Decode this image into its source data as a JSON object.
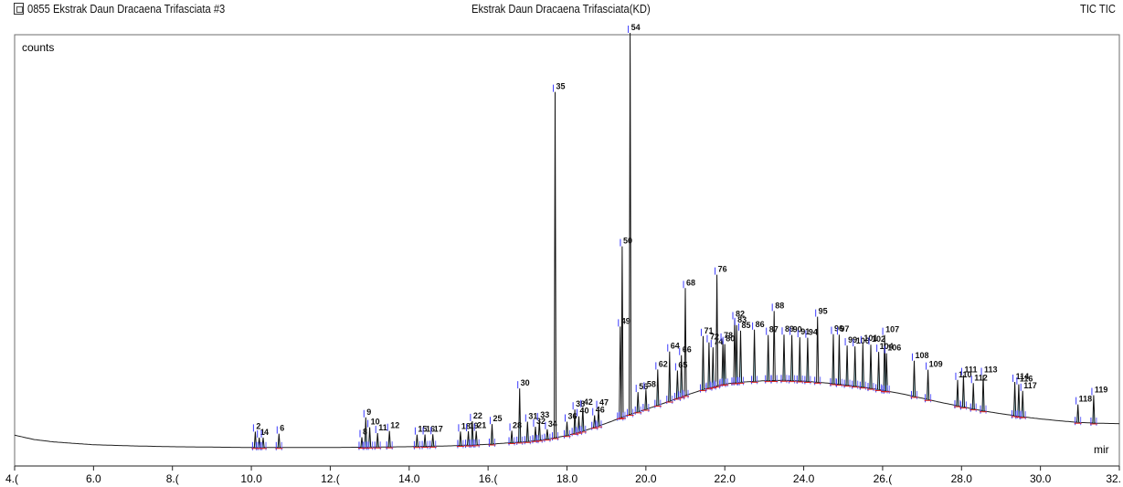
{
  "header": {
    "sample_name": "0855 Ekstrak Daun Dracaena Trifasciata #3",
    "sample_title": "Ekstrak Daun Dracaena Trifasciata(KD)",
    "trace_label": "TIC TIC",
    "file_icon": "file-icon"
  },
  "chart_data": {
    "type": "line",
    "title": "Ekstrak Daun Dracaena Trifasciata(KD)",
    "ylabel": "counts",
    "xlabel": "mir",
    "xlim": [
      4.0,
      32.0
    ],
    "ylim": [
      0,
      100
    ],
    "grid": false,
    "x_ticks": [
      4.0,
      6.0,
      8.0,
      10.0,
      12.0,
      14.0,
      16.0,
      18.0,
      20.0,
      22.0,
      24.0,
      26.0,
      28.0,
      30.0,
      32.0
    ],
    "x_tick_labels": [
      "4.(",
      "6.0",
      "8.(",
      "10.0",
      "12.(",
      "14.0",
      "16.(",
      "18.0",
      "20.0",
      "22.0",
      "24.0",
      "26.(",
      "28.0",
      "30.0",
      "32."
    ],
    "baseline": {
      "x": [
        4.0,
        4.5,
        5.0,
        6.0,
        7.0,
        8.0,
        9.0,
        10.0,
        11.0,
        12.0,
        13.0,
        14.0,
        15.0,
        16.0,
        17.0,
        17.5,
        18.0,
        18.5,
        19.0,
        19.5,
        20.0,
        20.5,
        21.0,
        21.5,
        22.0,
        22.5,
        23.0,
        23.5,
        24.0,
        24.5,
        25.0,
        25.5,
        26.0,
        26.5,
        27.0,
        27.5,
        28.0,
        28.5,
        29.0,
        29.5,
        30.0,
        30.5,
        31.0,
        31.5,
        32.0
      ],
      "y": [
        4.3,
        3.2,
        2.6,
        1.9,
        1.6,
        1.4,
        1.3,
        1.2,
        1.2,
        1.2,
        1.3,
        1.4,
        1.6,
        2.0,
        2.7,
        3.3,
        4.2,
        5.6,
        7.3,
        9.2,
        10.8,
        12.5,
        14.3,
        15.9,
        17.2,
        17.7,
        18.0,
        18.1,
        17.9,
        17.5,
        17.0,
        16.4,
        15.6,
        14.7,
        13.6,
        12.5,
        11.5,
        10.5,
        9.7,
        9.0,
        8.4,
        7.9,
        7.5,
        7.3,
        7.2
      ]
    },
    "peaks": [
      {
        "label": "2",
        "rt": 10.1,
        "h": 4.0
      },
      {
        "label": "1",
        "rt": 10.2,
        "h": 2.5
      },
      {
        "label": "4",
        "rt": 10.3,
        "h": 2.5
      },
      {
        "label": "6",
        "rt": 10.7,
        "h": 3.5
      },
      {
        "label": "9",
        "rt": 12.9,
        "h": 7.5
      },
      {
        "label": "8",
        "rt": 12.8,
        "h": 2.5
      },
      {
        "label": "10",
        "rt": 13.0,
        "h": 5.0
      },
      {
        "label": "11",
        "rt": 13.2,
        "h": 3.5
      },
      {
        "label": "12",
        "rt": 13.5,
        "h": 4.0
      },
      {
        "label": "15",
        "rt": 14.2,
        "h": 3.0
      },
      {
        "label": "16",
        "rt": 14.4,
        "h": 3.0
      },
      {
        "label": "17",
        "rt": 14.6,
        "h": 3.0
      },
      {
        "label": "18",
        "rt": 15.3,
        "h": 3.5
      },
      {
        "label": "19",
        "rt": 15.5,
        "h": 3.5
      },
      {
        "label": "22",
        "rt": 15.6,
        "h": 6.0
      },
      {
        "label": "21",
        "rt": 15.7,
        "h": 3.5
      },
      {
        "label": "25",
        "rt": 16.1,
        "h": 5.0
      },
      {
        "label": "28",
        "rt": 16.6,
        "h": 3.0
      },
      {
        "label": "30",
        "rt": 16.8,
        "h": 13.5
      },
      {
        "label": "31",
        "rt": 17.0,
        "h": 5.0
      },
      {
        "label": "32",
        "rt": 17.2,
        "h": 3.5
      },
      {
        "label": "33",
        "rt": 17.3,
        "h": 5.0
      },
      {
        "label": "34",
        "rt": 17.5,
        "h": 2.5
      },
      {
        "label": "35",
        "rt": 17.7,
        "h": 87.0
      },
      {
        "label": "36",
        "rt": 18.0,
        "h": 3.5
      },
      {
        "label": "38",
        "rt": 18.2,
        "h": 6.0
      },
      {
        "label": "42",
        "rt": 18.4,
        "h": 6.0
      },
      {
        "label": "40",
        "rt": 18.3,
        "h": 4.0
      },
      {
        "label": "47",
        "rt": 18.8,
        "h": 4.5
      },
      {
        "label": "46",
        "rt": 18.7,
        "h": 3.0
      },
      {
        "label": "49",
        "rt": 19.35,
        "h": 23.0
      },
      {
        "label": "50",
        "rt": 19.4,
        "h": 43.0
      },
      {
        "label": "54",
        "rt": 19.6,
        "h": 96.0
      },
      {
        "label": "56",
        "rt": 19.8,
        "h": 5.0
      },
      {
        "label": "58",
        "rt": 20.0,
        "h": 5.0
      },
      {
        "label": "62",
        "rt": 20.3,
        "h": 9.0
      },
      {
        "label": "64",
        "rt": 20.6,
        "h": 12.5
      },
      {
        "label": "65",
        "rt": 20.8,
        "h": 7.0
      },
      {
        "label": "66",
        "rt": 20.9,
        "h": 10.5
      },
      {
        "label": "68",
        "rt": 21.0,
        "h": 27.0
      },
      {
        "label": "71",
        "rt": 21.45,
        "h": 13.5
      },
      {
        "label": "72",
        "rt": 21.6,
        "h": 11.5
      },
      {
        "label": "74",
        "rt": 21.7,
        "h": 10.0
      },
      {
        "label": "76",
        "rt": 21.8,
        "h": 28.0
      },
      {
        "label": "78",
        "rt": 21.95,
        "h": 11.0
      },
      {
        "label": "80",
        "rt": 22.0,
        "h": 10.0
      },
      {
        "label": "82",
        "rt": 22.25,
        "h": 16.0
      },
      {
        "label": "83",
        "rt": 22.3,
        "h": 14.5
      },
      {
        "label": "85",
        "rt": 22.4,
        "h": 13.0
      },
      {
        "label": "86",
        "rt": 22.75,
        "h": 13.0
      },
      {
        "label": "88",
        "rt": 23.25,
        "h": 17.5
      },
      {
        "label": "87",
        "rt": 23.1,
        "h": 11.5
      },
      {
        "label": "89",
        "rt": 23.5,
        "h": 11.5
      },
      {
        "label": "90",
        "rt": 23.7,
        "h": 11.5
      },
      {
        "label": "91",
        "rt": 23.9,
        "h": 11.0
      },
      {
        "label": "94",
        "rt": 24.1,
        "h": 11.0
      },
      {
        "label": "95",
        "rt": 24.35,
        "h": 16.5
      },
      {
        "label": "96",
        "rt": 24.75,
        "h": 12.5
      },
      {
        "label": "97",
        "rt": 24.9,
        "h": 12.5
      },
      {
        "label": "99",
        "rt": 25.1,
        "h": 10.0
      },
      {
        "label": "100",
        "rt": 25.3,
        "h": 10.0
      },
      {
        "label": "101",
        "rt": 25.5,
        "h": 11.0
      },
      {
        "label": "102",
        "rt": 25.7,
        "h": 11.0
      },
      {
        "label": "104",
        "rt": 25.9,
        "h": 9.5
      },
      {
        "label": "106",
        "rt": 26.1,
        "h": 9.5
      },
      {
        "label": "107",
        "rt": 26.05,
        "h": 14.0
      },
      {
        "label": "108",
        "rt": 26.8,
        "h": 9.0
      },
      {
        "label": "109",
        "rt": 27.15,
        "h": 7.5
      },
      {
        "label": "110",
        "rt": 27.9,
        "h": 6.5
      },
      {
        "label": "111",
        "rt": 28.05,
        "h": 8.0
      },
      {
        "label": "112",
        "rt": 28.3,
        "h": 6.5
      },
      {
        "label": "113",
        "rt": 28.55,
        "h": 9.0
      },
      {
        "label": "114",
        "rt": 29.35,
        "h": 8.5
      },
      {
        "label": "116",
        "rt": 29.45,
        "h": 8.0
      },
      {
        "label": "117",
        "rt": 29.55,
        "h": 6.5
      },
      {
        "label": "118",
        "rt": 30.95,
        "h": 4.5
      },
      {
        "label": "119",
        "rt": 31.35,
        "h": 7.0
      }
    ]
  }
}
